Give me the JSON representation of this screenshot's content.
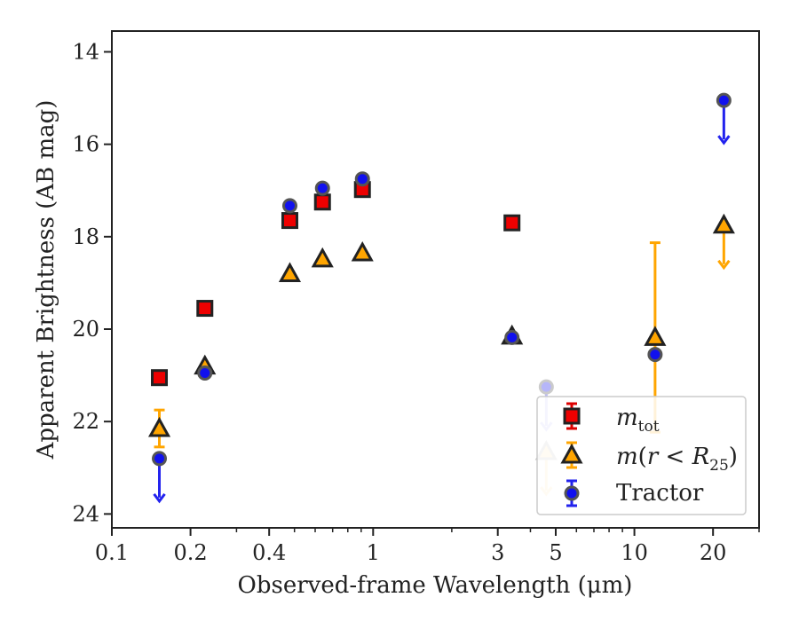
{
  "chart_data": {
    "type": "scatter",
    "title": "",
    "xlabel": "Observed-frame Wavelength (μm)",
    "ylabel": "Apparent Brightness (AB mag)",
    "x_scale": "log",
    "xlim": [
      0.1,
      30
    ],
    "ylim": [
      24.3,
      13.55
    ],
    "y_inverted": true,
    "grid": false,
    "legend_position": "lower right",
    "x_ticks": [
      {
        "value": 0.1,
        "label": "0.1"
      },
      {
        "value": 0.2,
        "label": "0.2"
      },
      {
        "value": 0.4,
        "label": "0.4"
      },
      {
        "value": 1,
        "label": "1"
      },
      {
        "value": 3,
        "label": "3"
      },
      {
        "value": 5,
        "label": "5"
      },
      {
        "value": 10,
        "label": "10"
      },
      {
        "value": 20,
        "label": "20"
      }
    ],
    "y_ticks": [
      {
        "value": 14,
        "label": "14"
      },
      {
        "value": 16,
        "label": "16"
      },
      {
        "value": 18,
        "label": "18"
      },
      {
        "value": 20,
        "label": "20"
      },
      {
        "value": 22,
        "label": "22"
      },
      {
        "value": 24,
        "label": "24"
      }
    ],
    "series": [
      {
        "name": "m_tot",
        "legend_label": "m_tot",
        "marker": "square",
        "color": "#ee0000",
        "edge_color": "#222222",
        "errbar_color": "#dd0000",
        "points": [
          {
            "x": 0.152,
            "y": 21.05
          },
          {
            "x": 0.227,
            "y": 19.55
          },
          {
            "x": 0.48,
            "y": 17.65
          },
          {
            "x": 0.64,
            "y": 17.25
          },
          {
            "x": 0.91,
            "y": 16.98
          },
          {
            "x": 3.4,
            "y": 17.7
          }
        ]
      },
      {
        "name": "m(r<R25)",
        "legend_label": "m(r < R25)",
        "marker": "triangle",
        "color": "#ffa500",
        "edge_color": "#222222",
        "errbar_color": "#ffa500",
        "points": [
          {
            "x": 0.152,
            "y": 22.15,
            "yerr": 0.4
          },
          {
            "x": 0.227,
            "y": 20.8
          },
          {
            "x": 0.48,
            "y": 18.8
          },
          {
            "x": 0.64,
            "y": 18.48
          },
          {
            "x": 0.91,
            "y": 18.35
          },
          {
            "x": 3.4,
            "y": 20.15
          },
          {
            "x": 4.6,
            "y": 22.65,
            "upper_limit": true,
            "alpha": 0.3
          },
          {
            "x": 12.0,
            "y": 20.18,
            "yerr": 2.05
          },
          {
            "x": 22.0,
            "y": 17.75,
            "upper_limit": true
          }
        ]
      },
      {
        "name": "Tractor",
        "legend_label": "Tractor",
        "marker": "circle",
        "color": "#1111ee",
        "edge_color": "#555555",
        "errbar_color": "#2222ee",
        "points": [
          {
            "x": 0.152,
            "y": 22.8,
            "upper_limit": true
          },
          {
            "x": 0.227,
            "y": 20.95
          },
          {
            "x": 0.48,
            "y": 17.33
          },
          {
            "x": 0.64,
            "y": 16.95
          },
          {
            "x": 0.91,
            "y": 16.75
          },
          {
            "x": 3.4,
            "y": 20.18
          },
          {
            "x": 4.6,
            "y": 21.25,
            "upper_limit": true,
            "alpha": 0.3
          },
          {
            "x": 12.0,
            "y": 20.55
          },
          {
            "x": 22.0,
            "y": 15.05,
            "upper_limit": true
          }
        ]
      }
    ]
  }
}
